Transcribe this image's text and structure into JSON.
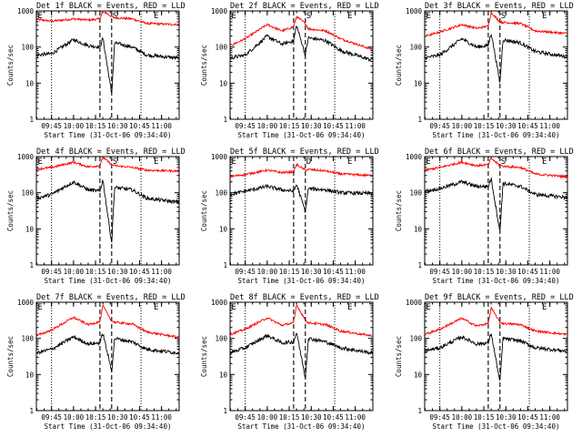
{
  "chart_data": [
    {
      "type": "line",
      "title": "Det 1f BLACK = Events, RED = LLD",
      "xlabel": "Start Time (31-Oct-06 09:34:40)",
      "ylabel": "Counts/sec",
      "yscale": "log",
      "ylim": [
        1,
        1000
      ],
      "xlim": [
        "09:34:40",
        "11:12:00"
      ],
      "xticks": [
        "09:45",
        "10:00",
        "10:15",
        "10:30",
        "10:45",
        "11:00"
      ],
      "yticks": [
        "1",
        "10",
        "100",
        "1000"
      ],
      "markers": [
        "E",
        "S",
        "E"
      ],
      "marker_times": [
        "09:35",
        "10:26",
        "10:54"
      ],
      "dotted_lines": [
        "09:45",
        "10:46"
      ],
      "dashed_lines": [
        "10:18",
        "10:26"
      ],
      "series": [
        {
          "name": "LLD",
          "color": "#ff0000",
          "t": [
            "09:35",
            "09:45",
            "10:00",
            "10:10",
            "10:18",
            "10:20",
            "10:26",
            "10:28",
            "10:40",
            "10:50",
            "11:10"
          ],
          "values": [
            580,
            520,
            600,
            560,
            600,
            1000,
            700,
            650,
            600,
            450,
            420
          ]
        },
        {
          "name": "Events",
          "color": "#000000",
          "t": [
            "09:35",
            "09:45",
            "10:00",
            "10:10",
            "10:18",
            "10:20",
            "10:26",
            "10:28",
            "10:40",
            "10:50",
            "11:10"
          ],
          "values": [
            60,
            65,
            160,
            110,
            100,
            180,
            5,
            130,
            100,
            60,
            50
          ]
        }
      ]
    },
    {
      "type": "line",
      "title": "Det 2f BLACK = Events, RED = LLD",
      "xlabel": "Start Time (31-Oct-06 09:34:40)",
      "ylabel": "Counts/sec",
      "yscale": "log",
      "ylim": [
        1,
        1000
      ],
      "xlim": [
        "09:34:40",
        "11:12:00"
      ],
      "xticks": [
        "09:45",
        "10:00",
        "10:15",
        "10:30",
        "10:45",
        "11:00"
      ],
      "yticks": [
        "1",
        "10",
        "100",
        "1000"
      ],
      "markers": [
        "E",
        "S",
        "E"
      ],
      "marker_times": [
        "09:35",
        "10:26",
        "10:54"
      ],
      "dotted_lines": [
        "09:45",
        "10:46"
      ],
      "dashed_lines": [
        "10:18",
        "10:26"
      ],
      "series": [
        {
          "name": "LLD",
          "color": "#ff0000",
          "t": [
            "09:35",
            "09:45",
            "10:00",
            "10:10",
            "10:18",
            "10:20",
            "10:26",
            "10:28",
            "10:40",
            "10:50",
            "11:10"
          ],
          "values": [
            110,
            170,
            420,
            280,
            360,
            700,
            450,
            320,
            280,
            170,
            90
          ]
        },
        {
          "name": "Events",
          "color": "#000000",
          "t": [
            "09:35",
            "09:45",
            "10:00",
            "10:10",
            "10:18",
            "10:20",
            "10:26",
            "10:28",
            "10:40",
            "10:50",
            "11:10"
          ],
          "values": [
            50,
            60,
            200,
            120,
            150,
            400,
            60,
            180,
            150,
            80,
            45
          ]
        }
      ]
    },
    {
      "type": "line",
      "title": "Det 3f BLACK = Events, RED = LLD",
      "xlabel": "Start Time (31-Oct-06 09:34:40)",
      "ylabel": "Counts/sec",
      "yscale": "log",
      "ylim": [
        1,
        1000
      ],
      "xlim": [
        "09:34:40",
        "11:12:00"
      ],
      "xticks": [
        "09:45",
        "10:00",
        "10:15",
        "10:30",
        "10:45",
        "11:00"
      ],
      "yticks": [
        "1",
        "10",
        "100",
        "1000"
      ],
      "markers": [
        "E",
        "S",
        "E"
      ],
      "marker_times": [
        "09:35",
        "10:26",
        "10:54"
      ],
      "dotted_lines": [
        "09:45",
        "10:46"
      ],
      "dashed_lines": [
        "10:18",
        "10:26"
      ],
      "series": [
        {
          "name": "LLD",
          "color": "#ff0000",
          "t": [
            "09:35",
            "09:45",
            "10:00",
            "10:10",
            "10:18",
            "10:20",
            "10:26",
            "10:28",
            "10:40",
            "10:50",
            "11:10"
          ],
          "values": [
            200,
            260,
            420,
            330,
            380,
            900,
            500,
            480,
            450,
            280,
            240
          ]
        },
        {
          "name": "Events",
          "color": "#000000",
          "t": [
            "09:35",
            "09:45",
            "10:00",
            "10:10",
            "10:18",
            "10:20",
            "10:26",
            "10:28",
            "10:40",
            "10:50",
            "11:10"
          ],
          "values": [
            50,
            60,
            170,
            100,
            110,
            250,
            10,
            160,
            130,
            75,
            55
          ]
        }
      ]
    },
    {
      "type": "line",
      "title": "Det 4f BLACK = Events, RED = LLD",
      "xlabel": "Start Time (31-Oct-06 09:34:40)",
      "ylabel": "Counts/sec",
      "yscale": "log",
      "ylim": [
        1,
        1000
      ],
      "xlim": [
        "09:34:40",
        "11:12:00"
      ],
      "xticks": [
        "09:45",
        "10:00",
        "10:15",
        "10:30",
        "10:45",
        "11:00"
      ],
      "yticks": [
        "1",
        "10",
        "100",
        "1000"
      ],
      "markers": [
        "E",
        "S",
        "E"
      ],
      "marker_times": [
        "09:35",
        "10:26",
        "10:54"
      ],
      "dotted_lines": [
        "09:45",
        "10:46"
      ],
      "dashed_lines": [
        "10:18",
        "10:26"
      ],
      "series": [
        {
          "name": "LLD",
          "color": "#ff0000",
          "t": [
            "09:35",
            "09:45",
            "10:00",
            "10:10",
            "10:18",
            "10:20",
            "10:26",
            "10:28",
            "10:40",
            "10:50",
            "11:10"
          ],
          "values": [
            450,
            500,
            700,
            520,
            560,
            950,
            600,
            560,
            500,
            420,
            400
          ]
        },
        {
          "name": "Events",
          "color": "#000000",
          "t": [
            "09:35",
            "09:45",
            "10:00",
            "10:10",
            "10:18",
            "10:20",
            "10:26",
            "10:28",
            "10:40",
            "10:50",
            "11:10"
          ],
          "values": [
            70,
            90,
            200,
            120,
            110,
            230,
            4,
            140,
            120,
            70,
            55
          ]
        }
      ]
    },
    {
      "type": "line",
      "title": "Det 5f BLACK = Events, RED = LLD",
      "xlabel": "Start Time (31-Oct-06 09:34:40)",
      "ylabel": "Counts/sec",
      "yscale": "log",
      "ylim": [
        1,
        1000
      ],
      "xlim": [
        "09:34:40",
        "11:12:00"
      ],
      "xticks": [
        "09:45",
        "10:00",
        "10:15",
        "10:30",
        "10:45",
        "11:00"
      ],
      "yticks": [
        "1",
        "10",
        "100",
        "1000"
      ],
      "markers": [
        "E",
        "D",
        "E"
      ],
      "marker_times": [
        "09:35",
        "10:26",
        "10:54"
      ],
      "dotted_lines": [
        "09:45",
        "10:46"
      ],
      "dashed_lines": [
        "10:18",
        "10:26"
      ],
      "series": [
        {
          "name": "LLD",
          "color": "#ff0000",
          "t": [
            "09:35",
            "09:45",
            "10:00",
            "10:10",
            "10:18",
            "10:20",
            "10:26",
            "10:28",
            "10:40",
            "10:50",
            "11:10"
          ],
          "values": [
            280,
            320,
            420,
            360,
            380,
            600,
            420,
            440,
            400,
            330,
            300
          ]
        },
        {
          "name": "Events",
          "color": "#000000",
          "t": [
            "09:35",
            "09:45",
            "10:00",
            "10:10",
            "10:18",
            "10:20",
            "10:26",
            "10:28",
            "10:40",
            "10:50",
            "11:10"
          ],
          "values": [
            90,
            110,
            150,
            120,
            110,
            170,
            30,
            130,
            120,
            100,
            95
          ]
        }
      ]
    },
    {
      "type": "line",
      "title": "Det 6f BLACK = Events, RED = LLD",
      "xlabel": "Start Time (31-Oct-06 09:34:40)",
      "ylabel": "Counts/sec",
      "yscale": "log",
      "ylim": [
        1,
        1000
      ],
      "xlim": [
        "09:34:40",
        "11:12:00"
      ],
      "xticks": [
        "09:45",
        "10:00",
        "10:15",
        "10:30",
        "10:45",
        "11:00"
      ],
      "yticks": [
        "1",
        "10",
        "100",
        "1000"
      ],
      "markers": [
        "E",
        "S",
        "E"
      ],
      "marker_times": [
        "09:35",
        "10:26",
        "10:54"
      ],
      "dotted_lines": [
        "09:45",
        "10:46"
      ],
      "dashed_lines": [
        "10:18",
        "10:26"
      ],
      "series": [
        {
          "name": "LLD",
          "color": "#ff0000",
          "t": [
            "09:35",
            "09:45",
            "10:00",
            "10:10",
            "10:18",
            "10:20",
            "10:26",
            "10:28",
            "10:40",
            "10:50",
            "11:10"
          ],
          "values": [
            420,
            500,
            700,
            560,
            600,
            900,
            560,
            540,
            500,
            330,
            280
          ]
        },
        {
          "name": "Events",
          "color": "#000000",
          "t": [
            "09:35",
            "09:45",
            "10:00",
            "10:10",
            "10:18",
            "10:20",
            "10:26",
            "10:28",
            "10:40",
            "10:50",
            "11:10"
          ],
          "values": [
            110,
            130,
            200,
            150,
            150,
            250,
            8,
            180,
            150,
            90,
            75
          ]
        }
      ]
    },
    {
      "type": "line",
      "title": "Det 7f BLACK = Events, RED = LLD",
      "xlabel": "Start Time (31-Oct-06 09:34:40)",
      "ylabel": "Counts/sec",
      "yscale": "log",
      "ylim": [
        1,
        1000
      ],
      "xlim": [
        "09:34:40",
        "11:12:00"
      ],
      "xticks": [
        "09:45",
        "10:00",
        "10:15",
        "10:30",
        "10:45",
        "11:00"
      ],
      "yticks": [
        "1",
        "10",
        "100",
        "1000"
      ],
      "markers": [
        "E",
        "",
        "E"
      ],
      "marker_times": [
        "09:35",
        "10:26",
        "10:54"
      ],
      "dotted_lines": [
        "09:45",
        "10:46"
      ],
      "dashed_lines": [
        "10:18",
        "10:26"
      ],
      "series": [
        {
          "name": "LLD",
          "color": "#ff0000",
          "t": [
            "09:35",
            "09:45",
            "10:00",
            "10:10",
            "10:18",
            "10:20",
            "10:26",
            "10:28",
            "10:40",
            "10:50",
            "11:10"
          ],
          "values": [
            120,
            170,
            380,
            240,
            290,
            800,
            300,
            280,
            250,
            150,
            110
          ]
        },
        {
          "name": "Events",
          "color": "#000000",
          "t": [
            "09:35",
            "09:45",
            "10:00",
            "10:10",
            "10:18",
            "10:20",
            "10:26",
            "10:28",
            "10:40",
            "10:50",
            "11:10"
          ],
          "values": [
            40,
            50,
            110,
            70,
            75,
            140,
            12,
            100,
            80,
            50,
            40
          ]
        }
      ]
    },
    {
      "type": "line",
      "title": "Det 8f BLACK = Events, RED = LLD",
      "xlabel": "Start Time (31-Oct-06 09:34:40)",
      "ylabel": "Counts/sec",
      "yscale": "log",
      "ylim": [
        1,
        1000
      ],
      "xlim": [
        "09:34:40",
        "11:12:00"
      ],
      "xticks": [
        "09:45",
        "10:00",
        "10:15",
        "10:30",
        "10:45",
        "11:00"
      ],
      "yticks": [
        "1",
        "10",
        "100",
        "1000"
      ],
      "markers": [
        "E",
        "",
        "E"
      ],
      "marker_times": [
        "09:35",
        "10:26",
        "10:54"
      ],
      "dotted_lines": [
        "09:45",
        "10:46"
      ],
      "dashed_lines": [
        "10:18",
        "10:26"
      ],
      "series": [
        {
          "name": "LLD",
          "color": "#ff0000",
          "t": [
            "09:35",
            "09:45",
            "10:00",
            "10:10",
            "10:18",
            "10:20",
            "10:26",
            "10:28",
            "10:40",
            "10:50",
            "11:10"
          ],
          "values": [
            130,
            180,
            370,
            230,
            270,
            850,
            320,
            270,
            240,
            160,
            120
          ]
        },
        {
          "name": "Events",
          "color": "#000000",
          "t": [
            "09:35",
            "09:45",
            "10:00",
            "10:10",
            "10:18",
            "10:20",
            "10:26",
            "10:28",
            "10:40",
            "10:50",
            "11:10"
          ],
          "values": [
            40,
            55,
            120,
            75,
            80,
            150,
            8,
            100,
            80,
            55,
            40
          ]
        }
      ]
    },
    {
      "type": "line",
      "title": "Det 9f BLACK = Events, RED = LLD",
      "xlabel": "Start Time (31-Oct-06 09:34:40)",
      "ylabel": "Counts/sec",
      "yscale": "log",
      "ylim": [
        1,
        1000
      ],
      "xlim": [
        "09:34:40",
        "11:12:00"
      ],
      "xticks": [
        "09:45",
        "10:00",
        "10:15",
        "10:30",
        "10:45",
        "11:00"
      ],
      "yticks": [
        "1",
        "10",
        "100",
        "1000"
      ],
      "markers": [
        "E",
        "",
        "E"
      ],
      "marker_times": [
        "09:35",
        "10:26",
        "10:54"
      ],
      "dotted_lines": [
        "09:45",
        "10:46"
      ],
      "dashed_lines": [
        "10:18",
        "10:26"
      ],
      "series": [
        {
          "name": "LLD",
          "color": "#ff0000",
          "t": [
            "09:35",
            "09:45",
            "10:00",
            "10:10",
            "10:18",
            "10:20",
            "10:26",
            "10:28",
            "10:40",
            "10:50",
            "11:10"
          ],
          "values": [
            130,
            180,
            360,
            220,
            260,
            700,
            280,
            260,
            240,
            160,
            130
          ]
        },
        {
          "name": "Events",
          "color": "#000000",
          "t": [
            "09:35",
            "09:45",
            "10:00",
            "10:10",
            "10:18",
            "10:20",
            "10:26",
            "10:28",
            "10:40",
            "10:50",
            "11:10"
          ],
          "values": [
            45,
            55,
            110,
            70,
            75,
            140,
            6,
            100,
            85,
            55,
            45
          ]
        }
      ]
    }
  ]
}
